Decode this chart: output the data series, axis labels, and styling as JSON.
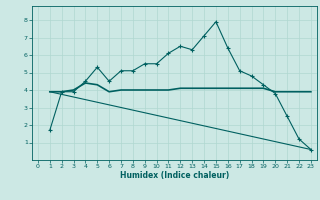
{
  "title": "",
  "xlabel": "Humidex (Indice chaleur)",
  "bg_color": "#cce8e4",
  "grid_color": "#b0d8d0",
  "line_color": "#006060",
  "xlim": [
    -0.5,
    23.5
  ],
  "ylim": [
    0,
    8.8
  ],
  "xticks": [
    0,
    1,
    2,
    3,
    4,
    5,
    6,
    7,
    8,
    9,
    10,
    11,
    12,
    13,
    14,
    15,
    16,
    17,
    18,
    19,
    20,
    21,
    22,
    23
  ],
  "yticks": [
    1,
    2,
    3,
    4,
    5,
    6,
    7,
    8
  ],
  "curve1_x": [
    1,
    2,
    3,
    4,
    5,
    6,
    7,
    8,
    9,
    10,
    11,
    12,
    13,
    14,
    15,
    16,
    17,
    18,
    19,
    20,
    21,
    22,
    23
  ],
  "curve1_y": [
    1.7,
    3.9,
    3.9,
    4.5,
    5.3,
    4.5,
    5.1,
    5.1,
    5.5,
    5.5,
    6.1,
    6.5,
    6.3,
    7.1,
    7.9,
    6.4,
    5.1,
    4.8,
    4.3,
    3.8,
    2.5,
    1.2,
    0.6
  ],
  "curve2_x": [
    1,
    2,
    3,
    4,
    5,
    6,
    7,
    8,
    9,
    10,
    11,
    12,
    13,
    14,
    15,
    16,
    17,
    18,
    19,
    20,
    21,
    22,
    23
  ],
  "curve2_y": [
    3.9,
    3.9,
    4.0,
    4.4,
    4.3,
    3.9,
    4.0,
    4.0,
    4.0,
    4.0,
    4.0,
    4.1,
    4.1,
    4.1,
    4.1,
    4.1,
    4.1,
    4.1,
    4.1,
    3.9,
    3.9,
    3.9,
    3.9
  ],
  "curve3_x": [
    1,
    23
  ],
  "curve3_y": [
    3.9,
    0.6
  ]
}
